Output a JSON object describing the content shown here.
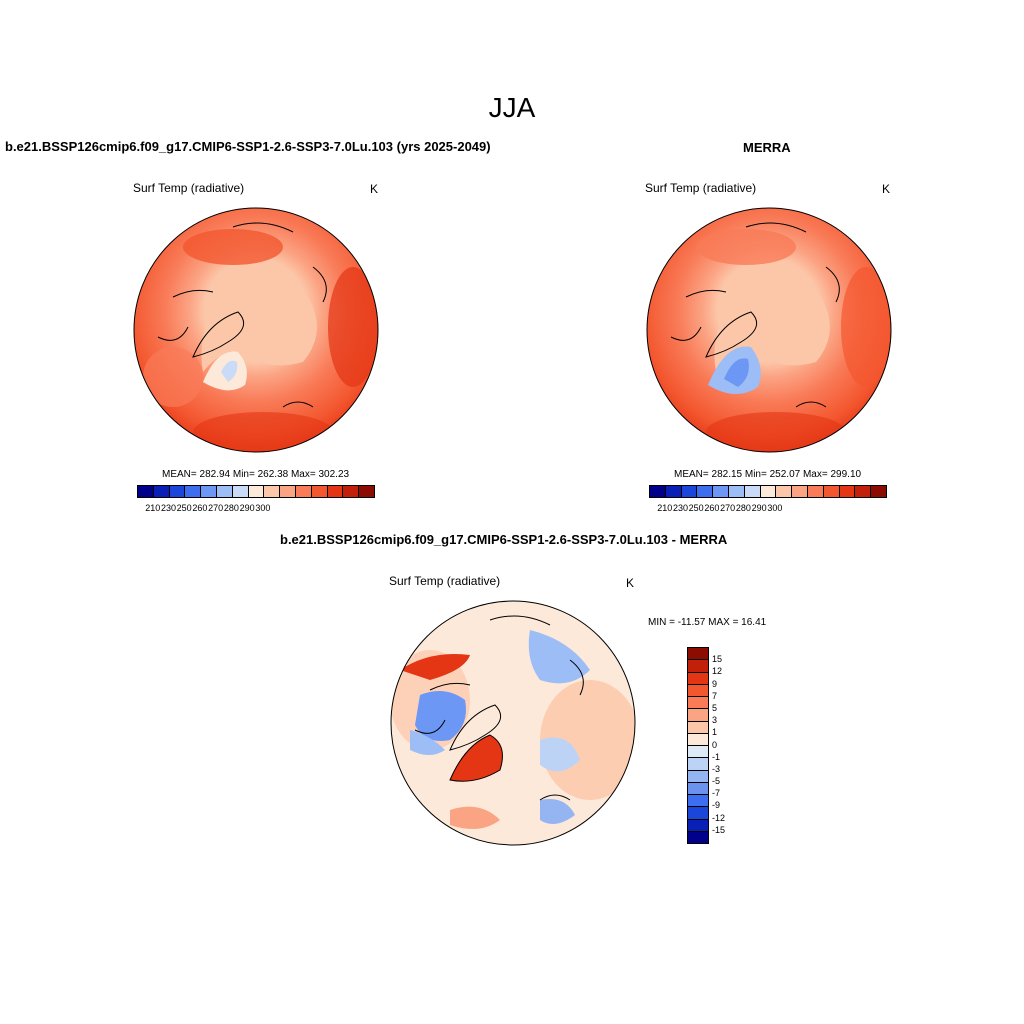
{
  "title": "JJA",
  "panels": {
    "model": {
      "title": "b.e21.BSSP126cmip6.f09_g17.CMIP6-SSP1-2.6-SSP3-7.0Lu.103 (yrs 2025-2049)",
      "subtitle": "Surf Temp (radiative)",
      "unit": "K",
      "stats": "MEAN= 282.94  Min= 262.38  Max= 302.23"
    },
    "obs": {
      "title": "MERRA",
      "subtitle": "Surf Temp (radiative)",
      "unit": "K",
      "stats": "MEAN= 282.15  Min= 252.07  Max= 299.10"
    },
    "diff": {
      "title": "b.e21.BSSP126cmip6.f09_g17.CMIP6-SSP1-2.6-SSP3-7.0Lu.103 - MERRA",
      "subtitle": "Surf Temp (radiative)",
      "unit": "K",
      "minmax": "MIN = -11.57 MAX =  16.41"
    }
  },
  "colorbar_abs": {
    "tick_labels": [
      "210",
      "230",
      "250",
      "260",
      "270",
      "280",
      "290",
      "300"
    ],
    "colors": [
      "#00008b",
      "#0a1fb5",
      "#1a46d9",
      "#3d6ef0",
      "#6c97f5",
      "#9dbdf7",
      "#c9dbf7",
      "#fde9d9",
      "#fcc6a8",
      "#fba484",
      "#f97b58",
      "#f3572f",
      "#e43514",
      "#c3200b",
      "#8c0c02"
    ]
  },
  "colorbar_diff": {
    "tick_labels": [
      "15",
      "12",
      "9",
      "7",
      "5",
      "3",
      "1",
      "0",
      "-1",
      "-3",
      "-5",
      "-7",
      "-9",
      "-12",
      "-15"
    ],
    "colors": [
      "#8c0c02",
      "#c3200b",
      "#e43514",
      "#f3572f",
      "#f97b58",
      "#fba484",
      "#fcc6a8",
      "#fde9d9",
      "#dfeaf7",
      "#bcd3f5",
      "#94b5f2",
      "#6b93ee",
      "#3d6ef0",
      "#1a46d9",
      "#0a1fb5",
      "#00008b"
    ]
  }
}
